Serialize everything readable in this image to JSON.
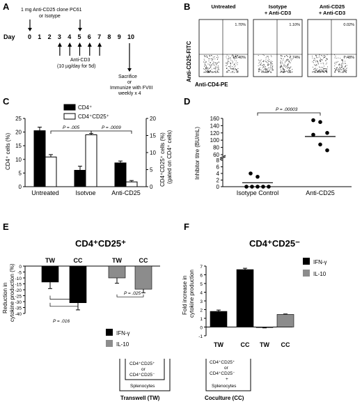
{
  "panels": {
    "A": {
      "letter": "A",
      "day_label": "Day",
      "days": [
        "0",
        "1",
        "2",
        "3",
        "4",
        "5",
        "6",
        "7",
        "8",
        "9",
        "10"
      ],
      "antibody_label_1": "1 mg Anti-CD25 clone PC61",
      "antibody_label_2": "or Isotype",
      "anticd3_label_1": "Anti-CD3",
      "anticd3_label_2": "(10 µg/day for 5d)",
      "end_label_1": "Sacrifice",
      "end_label_2": "or",
      "end_label_3": "Immunize with FVIII",
      "end_label_4": "weekly x 4"
    },
    "B": {
      "letter": "B",
      "ylabel": "Anti-CD25-FITC",
      "xlabel": "Anti-CD4-PE",
      "plots": [
        {
          "title_1": "Untreated",
          "title_2": "",
          "ur": "1.70%",
          "lr": "15.40%"
        },
        {
          "title_1": "Isotype",
          "title_2": "+ Anti-CD3",
          "ur": "1.10%",
          "lr": "7.74%"
        },
        {
          "title_1": "Anti-CD25",
          "title_2": "+ Anti-CD3",
          "ur": "0.02%",
          "lr": "7.48%"
        }
      ]
    },
    "C": {
      "letter": "C",
      "ylabel_left": "CD4⁺ cells (%)",
      "ylabel_right_1": "CD4⁺CD25⁺ cells (%)",
      "ylabel_right_2": "(gated on CD4⁺ cells)",
      "p1": "P = .005",
      "p2": "P = .0009"
    },
    "D": {
      "letter": "D",
      "ylabel": "Inhibitor titre (BU/mL)",
      "pval": "P = .00003"
    },
    "E": {
      "letter": "E",
      "title": "CD4⁺CD25⁺",
      "ylabel_1": "Reduction in",
      "ylabel_2": "cytokine production (%)",
      "p1": "P = .016",
      "p2": "P = .025",
      "inset_1": "CD4⁺CD25⁺",
      "inset_2": "or",
      "inset_3": "CD4⁺CD25⁻",
      "inset_4": "Splenocytes",
      "inset_caption": "Transwell (TW)"
    },
    "F": {
      "letter": "F",
      "title": "CD4⁺CD25⁻",
      "ylabel_1": "Fold increase in",
      "ylabel_2": "cytokine production",
      "inset_1": "CD4⁺CD25⁺",
      "inset_2": "or",
      "inset_3": "CD4⁺CD25⁻",
      "inset_4": "+",
      "inset_5": "Splenocytes",
      "inset_caption": "Coculture (CC)"
    }
  },
  "colors": {
    "black": "#000000",
    "gray": "#8c8c8c",
    "white": "#ffffff"
  },
  "chart_data": [
    {
      "panel": "C",
      "type": "bar",
      "categories": [
        "Untreated",
        "Isotype",
        "Anti-CD25"
      ],
      "series": [
        {
          "name": "CD4⁺",
          "axis": "left",
          "values": [
            20.5,
            6,
            8.7
          ],
          "errors": [
            1.3,
            1.5,
            0.7
          ],
          "color": "#000000"
        },
        {
          "name": "CD4⁺CD25⁺",
          "axis": "right",
          "values": [
            8.7,
            15.2,
            1.4
          ],
          "errors": [
            0.7,
            0.4,
            0.4
          ],
          "color": "#ffffff"
        }
      ],
      "ylim_left": [
        0,
        25
      ],
      "ylim_right": [
        0,
        20
      ],
      "yticks_left": [
        0,
        5,
        10,
        15,
        20,
        25
      ],
      "yticks_right": [
        0,
        5,
        10,
        15,
        20
      ]
    },
    {
      "panel": "D",
      "type": "scatter",
      "categories": [
        "Isotype Control",
        "Anti-CD25"
      ],
      "groups": [
        {
          "name": "Isotype Control",
          "values": [
            4,
            3,
            0,
            0,
            0,
            0,
            0
          ],
          "median": 1.2
        },
        {
          "name": "Anti-CD25",
          "values": [
            155,
            150,
            120,
            115,
            88,
            72
          ],
          "median": 110
        }
      ],
      "yticks_lower": [
        0,
        2,
        4,
        6,
        8
      ],
      "yticks_upper": [
        60,
        80,
        100,
        120,
        140,
        160
      ],
      "broken_axis": true
    },
    {
      "panel": "E",
      "type": "bar",
      "group_labels": [
        "TW",
        "CC",
        "TW",
        "CC"
      ],
      "series": [
        {
          "name": "IFN-γ",
          "color": "#000000",
          "values": [
            -13.5,
            -31
          ],
          "errors": [
            5.5,
            6
          ],
          "groups": [
            "TW",
            "CC"
          ]
        },
        {
          "name": "IL-10",
          "color": "#8c8c8c",
          "values": [
            -10,
            -19.5
          ],
          "errors": [
            4.5,
            3
          ],
          "groups": [
            "TW",
            "CC"
          ]
        }
      ],
      "ylim": [
        -40,
        0
      ],
      "yticks": [
        0,
        -5,
        -10,
        -15,
        -20,
        -25,
        -30,
        -35,
        -40
      ]
    },
    {
      "panel": "F",
      "type": "bar",
      "group_labels": [
        "TW",
        "CC",
        "TW",
        "CC"
      ],
      "series": [
        {
          "name": "IFN-γ",
          "color": "#000000",
          "values": [
            1.8,
            6.6
          ],
          "errors": [
            0.15,
            0.15
          ],
          "groups": [
            "TW",
            "CC"
          ]
        },
        {
          "name": "IL-10",
          "color": "#8c8c8c",
          "values": [
            -0.05,
            1.45
          ],
          "errors": [
            0.05,
            0.05
          ],
          "groups": [
            "TW",
            "CC"
          ]
        }
      ],
      "ylim": [
        -1,
        7
      ],
      "yticks": [
        -1,
        0,
        1,
        2,
        3,
        4,
        5,
        6,
        7
      ]
    }
  ]
}
